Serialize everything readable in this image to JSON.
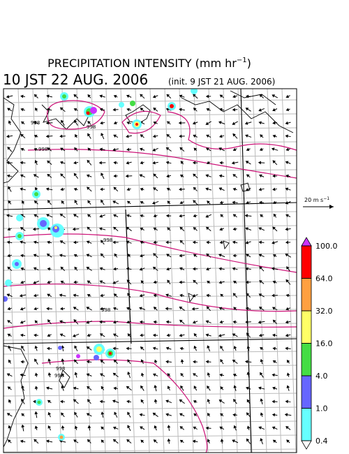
{
  "header": {
    "title_main": "PRECIPITATION INTENSITY (mm hr",
    "title_exp": "−1",
    "title_end": ")",
    "valid_time": "10 JST 22 AUG. 2006",
    "init_time": "(init. 9 JST 21 AUG. 2006)"
  },
  "map": {
    "contour_labels": [
      "998",
      "998",
      "998",
      "998",
      "998",
      "998",
      "998"
    ]
  },
  "wind_reference": {
    "label_main": "20 m s",
    "label_exp": "−1"
  },
  "colorbar": {
    "levels": [
      0.4,
      {
        "value": 1,
        "label": "1.0"
      },
      {
        "value": 4,
        "label": "4.0"
      },
      {
        "value": 16,
        "label": "16.0"
      },
      {
        "value": 32,
        "label": "32.0"
      },
      {
        "value": 64,
        "label": "64.0"
      },
      {
        "value": 100,
        "label": "100.0"
      }
    ],
    "colors": [
      "#66ffff",
      "#6666ff",
      "#44dd44",
      "#ffff66",
      "#ffa040",
      "#ff0000"
    ],
    "under_color": "#ffffff",
    "over_color": "#cc33ff"
  }
}
